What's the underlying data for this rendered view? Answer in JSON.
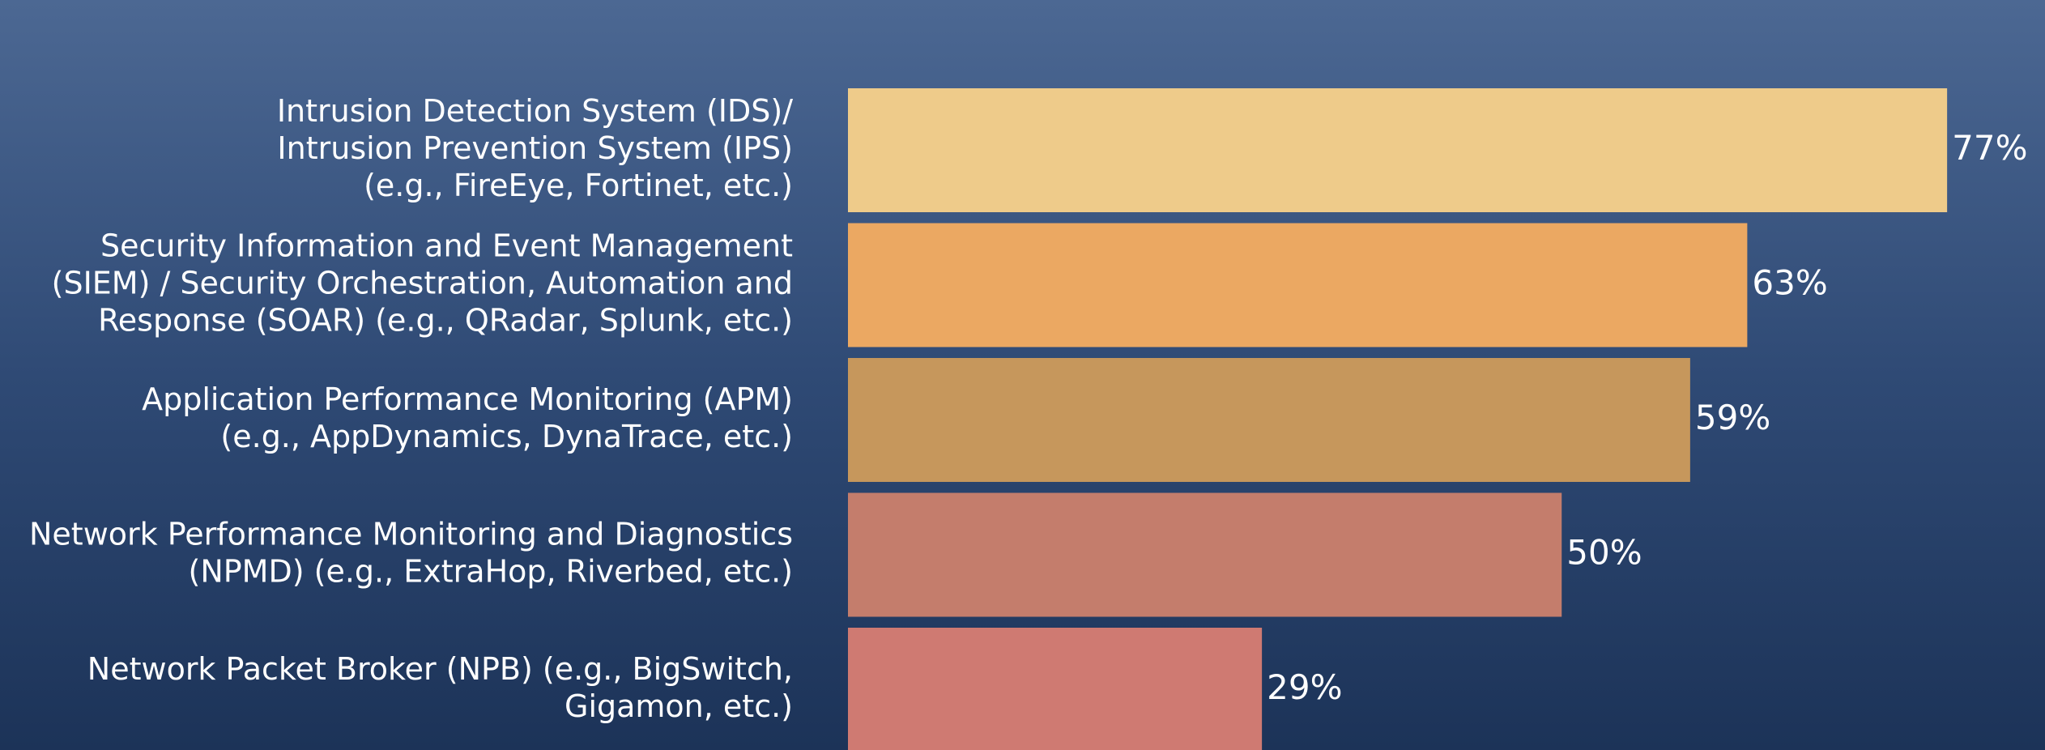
{
  "chart_data": {
    "type": "barh",
    "categories": [
      [
        "Intrusion Detection System (IDS)/",
        "Intrusion Prevention System (IPS)",
        "(e.g., FireEye, Fortinet, etc.)"
      ],
      [
        "Security Information and Event Management",
        "(SIEM) / Security Orchestration, Automation and",
        "Response (SOAR) (e.g., QRadar, Splunk, etc.)"
      ],
      [
        "Application Performance Monitoring (APM)",
        "(e.g., AppDynamics, DynaTrace, etc.)"
      ],
      [
        "Network Performance Monitoring and Diagnostics",
        "(NPMD) (e.g., ExtraHop, Riverbed, etc.)"
      ],
      [
        "Network Packet Broker (NPB) (e.g., BigSwitch,",
        "Gigamon, etc.)"
      ]
    ],
    "values": [
      77,
      63,
      59,
      50,
      29
    ],
    "value_labels": [
      "77%",
      "63%",
      "59%",
      "50%",
      "29%"
    ],
    "colors": [
      "#eecb8a",
      "#eba862",
      "#c6975c",
      "#c47d6c",
      "#cf7a72"
    ],
    "xlim": [
      0,
      80
    ]
  }
}
